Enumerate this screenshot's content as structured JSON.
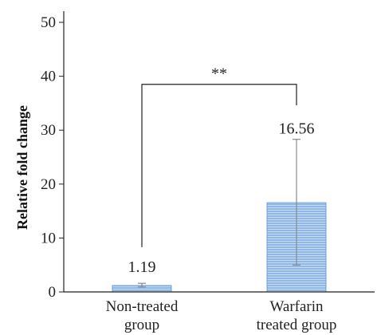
{
  "chart_data": {
    "type": "bar",
    "categories": [
      "Non-treated\ngroup",
      "Warfarin\ntreated group"
    ],
    "values": [
      1.19,
      16.56
    ],
    "value_labels": [
      "1.19",
      "16.56"
    ],
    "error_low": [
      0.9,
      5.0
    ],
    "error_high": [
      1.6,
      28.3
    ],
    "ylabel": "Relative fold change",
    "ylim": [
      0,
      50
    ],
    "yticks": [
      0,
      10,
      20,
      30,
      40,
      50
    ],
    "grid": false,
    "significance": {
      "label": "**",
      "between": [
        0,
        1
      ],
      "y": 38.5
    },
    "colors": {
      "bar_fill": "#8fb8e6",
      "bar_stripe": "#ffffff",
      "bar_edge": "#5b8ed1",
      "axis": "#222222",
      "error": "#888888"
    }
  }
}
